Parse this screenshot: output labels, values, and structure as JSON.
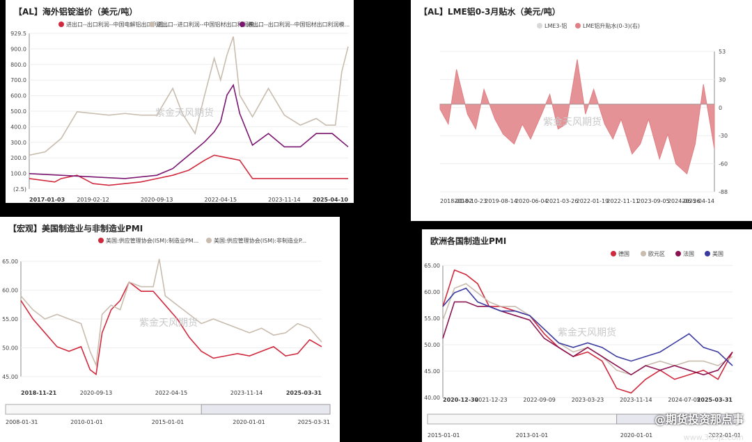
{
  "chart_data": [
    {
      "panel": "p1",
      "type": "line",
      "title": "【AL】海外铝锭溢价（美元/吨）",
      "legend": [
        "进出口--出口利润--中国电解铝出口利润...",
        "进出口--进口利润--中国铝材出口利润模...",
        "进出口--出口利润--中国铝材出口利润模..."
      ],
      "colors": [
        "#d0283c",
        "#c8bcae",
        "#7a1470"
      ],
      "x_ticks": [
        "2017-01-03",
        "2019-02-12",
        "2020-09-13",
        "2022-04-15",
        "2023-11-14",
        "2025-04-10"
      ],
      "y_ticks": [
        "929.5",
        "900.0",
        "800.0",
        "700.0",
        "600.0",
        "500.0",
        "400.0",
        "300.0",
        "200.0",
        "100.0",
        "(2.5)"
      ],
      "ylim": [
        -2.5,
        929.5
      ],
      "series": [
        {
          "name": "进出口--出口利润--中国电解铝出口利润...",
          "x": [
            0,
            0.08,
            0.1,
            0.15,
            0.2,
            0.25,
            0.3,
            0.35,
            0.4,
            0.45,
            0.5,
            0.55,
            0.58,
            0.62,
            0.66,
            0.7,
            0.8,
            0.9,
            1.0
          ],
          "y": [
            60,
            40,
            60,
            80,
            30,
            20,
            30,
            40,
            60,
            80,
            110,
            170,
            200,
            185,
            170,
            60,
            60,
            60,
            60
          ]
        },
        {
          "name": "进出口--进口利润--中国铝材出口利润模...",
          "x": [
            0,
            0.05,
            0.1,
            0.15,
            0.2,
            0.25,
            0.3,
            0.35,
            0.4,
            0.45,
            0.48,
            0.52,
            0.55,
            0.58,
            0.6,
            0.62,
            0.64,
            0.66,
            0.7,
            0.75,
            0.8,
            0.85,
            0.9,
            0.93,
            0.96,
            0.98,
            1.0
          ],
          "y": [
            200,
            220,
            300,
            460,
            450,
            440,
            450,
            440,
            440,
            600,
            450,
            330,
            560,
            780,
            650,
            800,
            910,
            560,
            430,
            600,
            440,
            380,
            420,
            380,
            380,
            700,
            850
          ]
        },
        {
          "name": "进出口--出口利润--中国铝材出口利润模...",
          "x": [
            0,
            0.1,
            0.2,
            0.3,
            0.4,
            0.45,
            0.5,
            0.55,
            0.58,
            0.6,
            0.62,
            0.64,
            0.66,
            0.7,
            0.75,
            0.8,
            0.85,
            0.9,
            0.95,
            1.0
          ],
          "y": [
            90,
            80,
            70,
            60,
            80,
            120,
            200,
            280,
            340,
            400,
            560,
            620,
            450,
            260,
            330,
            250,
            250,
            330,
            330,
            250
          ]
        }
      ]
    },
    {
      "panel": "p2",
      "type": "area",
      "title": "【AL】LME铝0-3月贴水（美元/吨）",
      "legend": [
        "LME3-铝",
        "LME铝升贴水(0-3)(右)"
      ],
      "colors": [
        "#d8d8d8",
        "#e07f84"
      ],
      "x_ticks": [
        "2018-01-02",
        "2018-10-23",
        "2019-08-14",
        "2020-06-04",
        "2021-03-26",
        "2022-01-19",
        "2022-11-11",
        "2023-09-05",
        "2024-06-26",
        "2025-04-14"
      ],
      "y_ticks": [
        "53",
        "30",
        "0",
        "-30",
        "-60",
        "-88"
      ],
      "ylim": [
        -88,
        53
      ],
      "series": [
        {
          "name": "LME铝升贴水(0-3)(右)",
          "x": [
            0,
            0.03,
            0.06,
            0.1,
            0.13,
            0.16,
            0.2,
            0.23,
            0.27,
            0.3,
            0.33,
            0.37,
            0.4,
            0.43,
            0.46,
            0.5,
            0.53,
            0.56,
            0.6,
            0.63,
            0.66,
            0.7,
            0.73,
            0.76,
            0.8,
            0.83,
            0.86,
            0.9,
            0.93,
            0.96,
            1.0
          ],
          "y": [
            -5,
            -20,
            35,
            -10,
            -25,
            15,
            -15,
            -30,
            -40,
            -20,
            -35,
            -10,
            10,
            -25,
            -20,
            45,
            -10,
            15,
            -20,
            -35,
            -15,
            -50,
            -40,
            -15,
            -55,
            -30,
            -60,
            -70,
            -40,
            20,
            -45
          ]
        }
      ]
    },
    {
      "panel": "p3",
      "type": "line",
      "title": "【宏观】美国制造业与非制造业PMI",
      "legend": [
        "美国:供应管理协会(ISM):制造业PM...",
        "美国:供应管理协会(ISM):非制造业P..."
      ],
      "colors": [
        "#d0283c",
        "#c8bcae"
      ],
      "x_ticks": [
        "2018-11-21",
        "2020-09-13",
        "2022-04-15",
        "2023-11-14",
        "2025-03-31"
      ],
      "y_ticks": [
        "65.00",
        "60.00",
        "55.00",
        "50.00",
        "45.00"
      ],
      "ylim": [
        42.5,
        67.5
      ],
      "navigator_ticks": [
        "2008-01-31",
        "2010-01-01",
        "2015-01-01",
        "2020-01-01",
        "2025-03-31"
      ],
      "series": [
        {
          "name": "美国:供应管理协会(ISM):制造业PM...",
          "x": [
            0,
            0.04,
            0.08,
            0.12,
            0.16,
            0.2,
            0.23,
            0.25,
            0.27,
            0.3,
            0.33,
            0.36,
            0.4,
            0.44,
            0.48,
            0.52,
            0.56,
            0.6,
            0.64,
            0.68,
            0.72,
            0.76,
            0.8,
            0.84,
            0.88,
            0.92,
            0.96,
            1.0
          ],
          "y": [
            59,
            55,
            52,
            49,
            48,
            49,
            44,
            43,
            52,
            57,
            59,
            63,
            61,
            61,
            58,
            55,
            51,
            48,
            46.5,
            47,
            47.5,
            47,
            48,
            49,
            47,
            47.5,
            50.5,
            49
          ]
        },
        {
          "name": "美国:供应管理协会(ISM):非制造业P...",
          "x": [
            0,
            0.04,
            0.08,
            0.12,
            0.16,
            0.2,
            0.23,
            0.25,
            0.27,
            0.3,
            0.33,
            0.36,
            0.4,
            0.44,
            0.46,
            0.48,
            0.52,
            0.56,
            0.6,
            0.64,
            0.68,
            0.72,
            0.76,
            0.8,
            0.84,
            0.88,
            0.92,
            0.96,
            1.0
          ],
          "y": [
            60,
            57,
            55,
            56,
            55,
            54,
            48,
            45,
            56,
            58,
            57,
            63,
            62,
            62,
            68,
            60,
            58,
            56,
            54,
            55,
            54,
            53,
            52,
            53,
            51.5,
            52,
            54,
            53,
            50
          ]
        }
      ]
    },
    {
      "panel": "p4",
      "type": "line",
      "title": "欧洲各国制造业PMI",
      "legend": [
        "德国",
        "欧元区",
        "法国",
        "美国"
      ],
      "colors": [
        "#d0283c",
        "#c8bcae",
        "#8a1250",
        "#3a3aa0"
      ],
      "x_ticks": [
        "2020-12-30",
        "2021-12-23",
        "2022-09-09",
        "2023-03-23",
        "2023-11-14",
        "2024-07-05",
        "2025-03-31"
      ],
      "y_ticks": [
        "65.00",
        "60.00",
        "55.00",
        "50.00",
        "45.00",
        "40.00"
      ],
      "ylim": [
        38,
        67
      ],
      "navigator_ticks": [
        "2015-01-01",
        "2013-01-01",
        "2020-01-01",
        "2022-01-01"
      ],
      "series": [
        {
          "name": "德国",
          "x": [
            0,
            0.04,
            0.08,
            0.12,
            0.16,
            0.2,
            0.25,
            0.3,
            0.35,
            0.4,
            0.45,
            0.5,
            0.55,
            0.6,
            0.65,
            0.7,
            0.75,
            0.8,
            0.85,
            0.9,
            0.95,
            1.0
          ],
          "y": [
            58,
            66,
            65,
            63,
            58,
            58,
            57,
            56,
            52,
            49,
            47,
            48,
            46,
            40,
            39,
            42,
            44,
            42,
            43,
            44,
            42,
            48
          ]
        },
        {
          "name": "欧元区",
          "x": [
            0,
            0.04,
            0.08,
            0.12,
            0.16,
            0.2,
            0.25,
            0.3,
            0.35,
            0.4,
            0.45,
            0.5,
            0.55,
            0.6,
            0.65,
            0.7,
            0.75,
            0.8,
            0.85,
            0.9,
            0.95,
            1.0
          ],
          "y": [
            55,
            62,
            63,
            61,
            59,
            58,
            58,
            56,
            53,
            50,
            48,
            49,
            47,
            44,
            43,
            45,
            46,
            45,
            46,
            46,
            45,
            47
          ]
        },
        {
          "name": "法国",
          "x": [
            0,
            0.04,
            0.08,
            0.12,
            0.16,
            0.2,
            0.25,
            0.3,
            0.35,
            0.4,
            0.45,
            0.5,
            0.55,
            0.6,
            0.65,
            0.7,
            0.75,
            0.8,
            0.85,
            0.9,
            0.95,
            1.0
          ],
          "y": [
            51,
            59,
            59,
            58,
            58,
            57,
            56,
            55,
            51,
            49,
            47,
            49,
            47,
            45,
            43,
            45,
            44,
            45,
            44,
            43,
            44,
            48
          ]
        },
        {
          "name": "美国",
          "x": [
            0,
            0.04,
            0.08,
            0.12,
            0.16,
            0.2,
            0.25,
            0.3,
            0.35,
            0.4,
            0.45,
            0.5,
            0.55,
            0.6,
            0.65,
            0.7,
            0.75,
            0.8,
            0.85,
            0.9,
            0.95,
            1.0
          ],
          "y": [
            58,
            61,
            62,
            59,
            58,
            57,
            57,
            56,
            53,
            50,
            49,
            50,
            49,
            47,
            46,
            47,
            48,
            50,
            52,
            49,
            48,
            45
          ]
        }
      ]
    }
  ],
  "watermarks": {
    "cn": "紫金天风期货",
    "brand": "@期货投资那点事",
    "url": "www.365jz.com"
  }
}
